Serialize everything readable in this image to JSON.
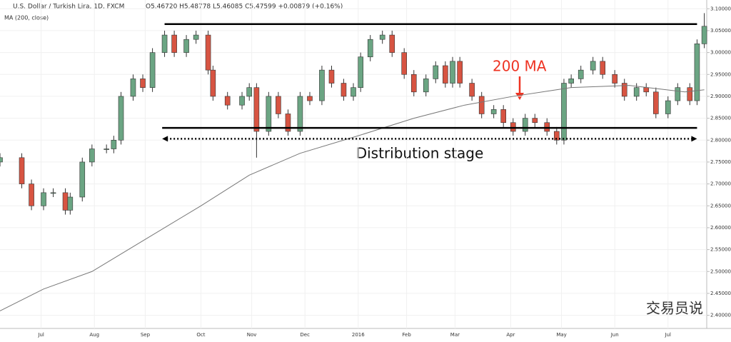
{
  "chart_data": {
    "type": "candlestick",
    "title": "U.S. Dollar / Turkish Lira, 1D, FXCM",
    "ohlc_readout": "O5.46720 H5.48778 L5.46085 C5.47599 +0.00879 (+0.16%)",
    "indicator_label": "MA (200, close)",
    "up_color": "#6ba583",
    "down_color": "#d75442",
    "ma_color": "#777777",
    "xlim": [
      0,
      292
    ],
    "ylim": [
      2.37,
      3.12
    ],
    "xticks": [
      {
        "value": 17,
        "label": "Jul"
      },
      {
        "value": 39,
        "label": "Aug"
      },
      {
        "value": 60,
        "label": "Sep"
      },
      {
        "value": 83,
        "label": "Oct"
      },
      {
        "value": 104,
        "label": "Nov"
      },
      {
        "value": 126,
        "label": "Dec"
      },
      {
        "value": 148,
        "label": "2016"
      },
      {
        "value": 168,
        "label": "Feb"
      },
      {
        "value": 188,
        "label": "Mar"
      },
      {
        "value": 211,
        "label": "Apr"
      },
      {
        "value": 232,
        "label": "May"
      },
      {
        "value": 254,
        "label": "Jun"
      },
      {
        "value": 276,
        "label": "Jul"
      }
    ],
    "yticks": [
      {
        "value": 2.4,
        "label": "2.40000"
      },
      {
        "value": 2.45,
        "label": "2.45000"
      },
      {
        "value": 2.5,
        "label": "2.50000"
      },
      {
        "value": 2.55,
        "label": "2.55000"
      },
      {
        "value": 2.6,
        "label": "2.60000"
      },
      {
        "value": 2.65,
        "label": "2.65000"
      },
      {
        "value": 2.7,
        "label": "2.70000"
      },
      {
        "value": 2.75,
        "label": "2.75000"
      },
      {
        "value": 2.8,
        "label": "2.80000"
      },
      {
        "value": 2.85,
        "label": "2.85000"
      },
      {
        "value": 2.9,
        "label": "2.90000"
      },
      {
        "value": 2.95,
        "label": "2.95000"
      },
      {
        "value": 3.0,
        "label": "3.00000"
      },
      {
        "value": 3.05,
        "label": "3.05000"
      },
      {
        "value": 3.1,
        "label": "3.10000"
      }
    ],
    "candles": {
      "x": [
        0,
        9,
        13,
        18,
        22,
        27,
        29,
        34,
        38,
        44,
        47,
        50,
        55,
        59,
        63,
        68,
        72,
        77,
        81,
        86,
        88,
        94,
        100,
        103,
        106,
        111,
        115,
        119,
        124,
        128,
        133,
        137,
        142,
        146,
        149,
        153,
        158,
        162,
        167,
        171,
        176,
        180,
        184,
        187,
        190,
        195,
        199,
        204,
        208,
        212,
        217,
        221,
        226,
        230,
        233,
        236,
        240,
        245,
        249,
        254,
        258,
        263,
        267,
        271,
        276,
        280,
        285,
        288,
        291
      ],
      "open": [
        2.75,
        2.76,
        2.7,
        2.65,
        2.68,
        2.68,
        2.64,
        2.67,
        2.75,
        2.78,
        2.78,
        2.8,
        2.9,
        2.94,
        2.92,
        3.0,
        3.04,
        3.0,
        3.03,
        3.04,
        2.96,
        2.9,
        2.88,
        2.9,
        2.92,
        2.82,
        2.9,
        2.86,
        2.82,
        2.9,
        2.89,
        2.96,
        2.93,
        2.9,
        2.92,
        2.99,
        3.03,
        3.04,
        3.0,
        2.95,
        2.91,
        2.94,
        2.97,
        2.93,
        2.98,
        2.93,
        2.9,
        2.86,
        2.87,
        2.84,
        2.82,
        2.85,
        2.84,
        2.82,
        2.8,
        2.93,
        2.94,
        2.96,
        2.98,
        2.95,
        2.93,
        2.9,
        2.92,
        2.91,
        2.86,
        2.89,
        2.92,
        2.89,
        3.02
      ],
      "high": [
        2.77,
        2.77,
        2.71,
        2.69,
        2.69,
        2.69,
        2.68,
        2.76,
        2.79,
        2.79,
        2.81,
        2.91,
        2.95,
        2.95,
        3.01,
        3.05,
        3.05,
        3.04,
        3.05,
        3.05,
        2.97,
        2.91,
        2.91,
        2.93,
        2.93,
        2.91,
        2.91,
        2.87,
        2.91,
        2.91,
        2.97,
        2.97,
        2.94,
        2.93,
        3.0,
        3.04,
        3.05,
        3.05,
        3.01,
        2.96,
        2.95,
        2.98,
        2.98,
        2.99,
        2.99,
        2.94,
        2.91,
        2.88,
        2.88,
        2.85,
        2.86,
        2.86,
        2.85,
        2.83,
        2.94,
        2.95,
        2.97,
        2.99,
        2.99,
        2.96,
        2.94,
        2.93,
        2.93,
        2.92,
        2.9,
        2.93,
        2.93,
        3.03,
        3.09
      ],
      "low": [
        2.74,
        2.69,
        2.64,
        2.64,
        2.67,
        2.63,
        2.63,
        2.66,
        2.74,
        2.77,
        2.77,
        2.79,
        2.89,
        2.91,
        2.91,
        2.99,
        2.99,
        2.99,
        3.02,
        2.95,
        2.89,
        2.87,
        2.87,
        2.89,
        2.76,
        2.81,
        2.85,
        2.81,
        2.81,
        2.88,
        2.88,
        2.92,
        2.89,
        2.89,
        2.91,
        2.98,
        3.02,
        2.99,
        2.94,
        2.9,
        2.9,
        2.93,
        2.92,
        2.92,
        2.92,
        2.89,
        2.85,
        2.85,
        2.83,
        2.81,
        2.81,
        2.83,
        2.81,
        2.79,
        2.79,
        2.92,
        2.93,
        2.95,
        2.94,
        2.92,
        2.89,
        2.89,
        2.9,
        2.85,
        2.85,
        2.88,
        2.88,
        2.88,
        3.01
      ],
      "close": [
        2.76,
        2.7,
        2.65,
        2.68,
        2.68,
        2.64,
        2.67,
        2.75,
        2.78,
        2.78,
        2.8,
        2.9,
        2.94,
        2.92,
        3.0,
        3.04,
        3.0,
        3.03,
        3.04,
        2.96,
        2.9,
        2.88,
        2.9,
        2.92,
        2.82,
        2.9,
        2.86,
        2.82,
        2.9,
        2.89,
        2.96,
        2.93,
        2.9,
        2.92,
        2.99,
        3.03,
        3.04,
        3.0,
        2.95,
        2.91,
        2.94,
        2.97,
        2.93,
        2.98,
        2.93,
        2.9,
        2.86,
        2.87,
        2.84,
        2.82,
        2.85,
        2.84,
        2.82,
        2.8,
        2.93,
        2.94,
        2.96,
        2.98,
        2.95,
        2.93,
        2.9,
        2.92,
        2.91,
        2.86,
        2.89,
        2.92,
        2.89,
        3.02,
        3.06
      ]
    },
    "ma": {
      "x": [
        0,
        18,
        38,
        59,
        83,
        103,
        124,
        148,
        171,
        192,
        212,
        236,
        260,
        283,
        291
      ],
      "values": [
        2.41,
        2.46,
        2.5,
        2.57,
        2.65,
        2.72,
        2.77,
        2.81,
        2.85,
        2.88,
        2.9,
        2.92,
        2.925,
        2.91,
        2.915
      ]
    },
    "annotations": {
      "levels": [
        {
          "value": 3.065,
          "x": [
            68,
            288
          ]
        },
        {
          "value": 2.828,
          "x": [
            67,
            288
          ]
        }
      ],
      "range_arrow": {
        "value": 2.803,
        "x": [
          67,
          288
        ],
        "label": "Distribution stage"
      },
      "ma_label": "200 MA"
    },
    "watermark": "交易员说"
  }
}
